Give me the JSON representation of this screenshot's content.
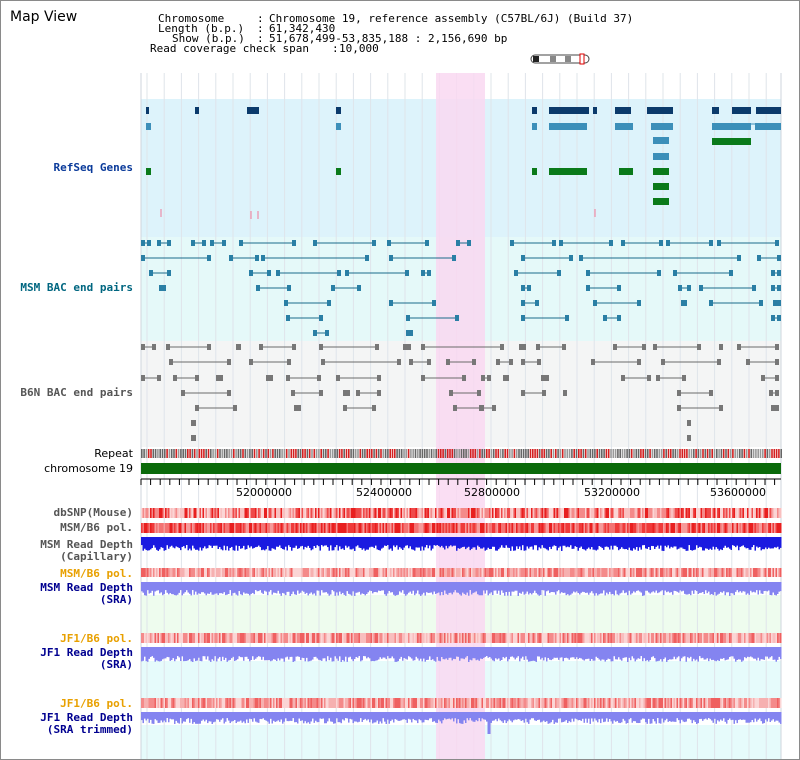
{
  "app": {
    "title": "Map View"
  },
  "info": {
    "chromosome_key": "Chromosome",
    "chromosome_val": "Chromosome 19, reference assembly (C57BL/6J) (Build 37)",
    "length_key": "Length (b.p.)",
    "length_val": "61,342,430",
    "show_key": "Show (b.p.)",
    "show_val": "51,678,499-53,835,188 : 2,156,690 bp",
    "span_key": "Read coverage check span",
    "span_val": "10,000"
  },
  "tracks": {
    "refseq": "RefSeq Genes",
    "msm_bac": "MSM BAC end pairs",
    "b6n_bac": "B6N BAC end pairs",
    "repeat": "Repeat",
    "chromosome": "chromosome 19",
    "dbsnp": "dbSNP(Mouse)",
    "msm_b6_pol_1": "MSM/B6 pol.",
    "msm_depth_cap_1": "MSM Read Depth",
    "msm_depth_cap_2": "(Capillary)",
    "msm_b6_pol_2": "MSM/B6 pol.",
    "msm_depth_sra_1": "MSM Read Depth",
    "msm_depth_sra_2": "(SRA)",
    "jf1_b6_pol_1": "JF1/B6 pol.",
    "jf1_depth_sra_1": "JF1 Read Depth",
    "jf1_depth_sra_2": "(SRA)",
    "jf1_b6_pol_2": "JF1/B6 pol.",
    "jf1_depth_trim_1": "JF1 Read Depth",
    "jf1_depth_trim_2": "(SRA trimmed)"
  },
  "axis": {
    "ticks": [
      "52000000",
      "52400000",
      "52800000",
      "53200000",
      "53600000"
    ]
  },
  "colors": {
    "refseq_bg": "#ddf3fb",
    "msm_bac_bg": "#e5f9f9",
    "b6n_bac_bg": "#f4f5f5",
    "highlight": "#f9d8f1",
    "gene_dark": "#0b3a6b",
    "gene_mid": "#3c8fb9",
    "gene_green": "#0a7a1a",
    "chromosome": "#0a6a0a",
    "label_refseq": "#0a3a9a",
    "label_bac": "#006680",
    "label_b6n": "#555555",
    "label_orange": "#e8a000",
    "label_blue": "#000090"
  }
}
